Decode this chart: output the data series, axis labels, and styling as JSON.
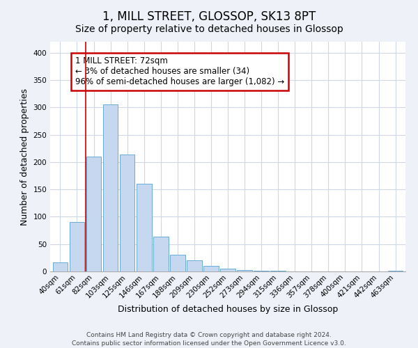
{
  "title": "1, MILL STREET, GLOSSOP, SK13 8PT",
  "subtitle": "Size of property relative to detached houses in Glossop",
  "xlabel": "Distribution of detached houses by size in Glossop",
  "ylabel": "Number of detached properties",
  "bin_labels": [
    "40sqm",
    "61sqm",
    "82sqm",
    "103sqm",
    "125sqm",
    "146sqm",
    "167sqm",
    "188sqm",
    "209sqm",
    "230sqm",
    "252sqm",
    "273sqm",
    "294sqm",
    "315sqm",
    "336sqm",
    "357sqm",
    "378sqm",
    "400sqm",
    "421sqm",
    "442sqm",
    "463sqm"
  ],
  "bar_values": [
    17,
    90,
    210,
    305,
    214,
    160,
    64,
    30,
    20,
    10,
    5,
    2,
    1,
    1,
    0,
    0,
    0,
    0,
    0,
    0,
    1
  ],
  "bar_color": "#c5d8ef",
  "bar_edge_color": "#6aaad4",
  "vline_x_index": 1.5,
  "vline_color": "#cc0000",
  "ylim": [
    0,
    420
  ],
  "yticks": [
    0,
    50,
    100,
    150,
    200,
    250,
    300,
    350,
    400
  ],
  "annotation_box_text": "1 MILL STREET: 72sqm\n← 3% of detached houses are smaller (34)\n96% of semi-detached houses are larger (1,082) →",
  "footer_line1": "Contains HM Land Registry data © Crown copyright and database right 2024.",
  "footer_line2": "Contains public sector information licensed under the Open Government Licence v3.0.",
  "bg_color": "#eef2f8",
  "plot_bg_color": "#ffffff",
  "grid_color": "#d0d8e8",
  "title_fontsize": 12,
  "subtitle_fontsize": 10,
  "axis_label_fontsize": 9,
  "tick_fontsize": 7.5,
  "annotation_fontsize": 8.5,
  "footer_fontsize": 6.5
}
